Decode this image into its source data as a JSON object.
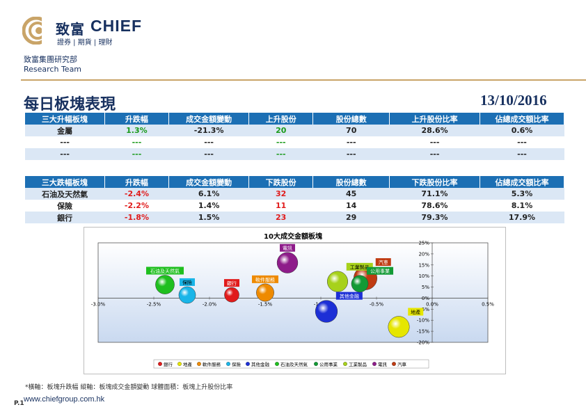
{
  "header": {
    "logo_cn": "致富",
    "logo_en": "CHIEF",
    "logo_sub": "證券 | 期貨 | 理財",
    "dept_cn": "致富集團研究部",
    "dept_en": "Research Team",
    "brand_color": "#17305f",
    "accent_color": "#c9a468"
  },
  "page": {
    "title": "每日板塊表現",
    "date": "13/10/2016"
  },
  "top_table": {
    "headers": [
      "三大升幅板塊",
      "升跌幅",
      "成交金額變動",
      "上升股份",
      "股份總數",
      "上升股份比率",
      "佔總成交額比率"
    ],
    "rows": [
      [
        "金屬",
        "1.3%",
        "-21.3%",
        "20",
        "70",
        "28.6%",
        "0.6%"
      ],
      [
        "---",
        "---",
        "---",
        "---",
        "---",
        "---",
        "---"
      ],
      [
        "---",
        "---",
        "---",
        "---",
        "---",
        "---",
        "---"
      ]
    ]
  },
  "bottom_table": {
    "headers": [
      "三大跌幅板塊",
      "升跌幅",
      "成交金額變動",
      "下跌股份",
      "股份總數",
      "下跌股份比率",
      "佔總成交額比率"
    ],
    "rows": [
      [
        "石油及天然氣",
        "-2.4%",
        "6.1%",
        "32",
        "45",
        "71.1%",
        "5.3%"
      ],
      [
        "保險",
        "-2.2%",
        "1.4%",
        "11",
        "14",
        "78.6%",
        "8.1%"
      ],
      [
        "銀行",
        "-1.8%",
        "1.5%",
        "23",
        "29",
        "79.3%",
        "17.9%"
      ]
    ]
  },
  "chart_data": {
    "type": "bubble",
    "title": "10大成交金額板塊",
    "xlim": [
      -3.0,
      0.5
    ],
    "ylim": [
      -20,
      25
    ],
    "x_ticks": [
      "-3.0%",
      "-2.5%",
      "-2.0%",
      "-1.5%",
      "-1.0%",
      "-0.5%",
      "0.0%",
      "0.5%"
    ],
    "y_ticks": [
      "25%",
      "20%",
      "15%",
      "10%",
      "5%",
      "0%",
      "-5%",
      "-10%",
      "-15%",
      "-20%"
    ],
    "series": [
      {
        "name": "銀行",
        "x": -1.8,
        "y": 1.5,
        "size": 23,
        "color": "#e01b1b"
      },
      {
        "name": "地產",
        "x": -0.3,
        "y": -13,
        "size": 48,
        "color": "#e6e600"
      },
      {
        "name": "軟件服務",
        "x": -1.5,
        "y": 2.5,
        "size": 33,
        "color": "#ee8a00"
      },
      {
        "name": "保險",
        "x": -2.2,
        "y": 1.4,
        "size": 30,
        "color": "#19b5e8"
      },
      {
        "name": "其他金融",
        "x": -0.95,
        "y": -6,
        "size": 52,
        "color": "#1c2fd6"
      },
      {
        "name": "石油及天然氣",
        "x": -2.4,
        "y": 6.1,
        "size": 38,
        "color": "#1fbf1f"
      },
      {
        "name": "公用事業",
        "x": -0.65,
        "y": 6.5,
        "size": 30,
        "color": "#129a35"
      },
      {
        "name": "工業製品",
        "x": -0.85,
        "y": 7.5,
        "size": 45,
        "color": "#a7d11b"
      },
      {
        "name": "電訊",
        "x": -1.3,
        "y": 16,
        "size": 46,
        "color": "#8e1c8a"
      },
      {
        "name": "汽車",
        "x": -0.6,
        "y": 9,
        "size": 58,
        "color": "#bf3b12"
      }
    ]
  },
  "footnote": "*橫軸：板塊升跌幅        縱軸：板塊成交金額變動        球體面積：板塊上升股份比率",
  "footer": {
    "page": "P.1",
    "url": "www.chiefgroup.com.hk"
  }
}
